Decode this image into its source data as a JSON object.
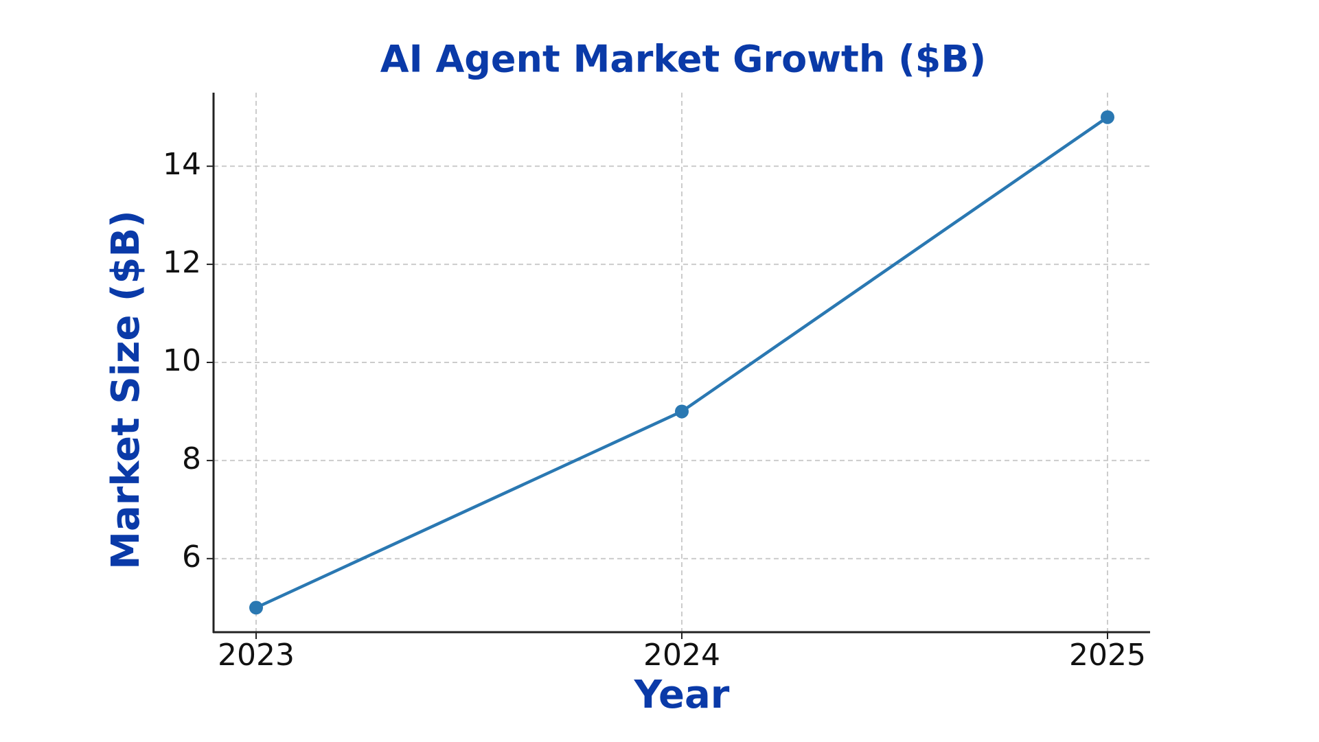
{
  "chart_data": {
    "type": "line",
    "title": "AI Agent Market Growth ($B)",
    "x_label": "Year",
    "y_label": "Market Size ($B)",
    "x": [
      2023,
      2024,
      2025
    ],
    "values": [
      5,
      9,
      15
    ],
    "color": "#2a78b2",
    "xlim": [
      2022.9,
      2025.1
    ],
    "xticks": [
      2023,
      2024,
      2025
    ],
    "ylim": [
      4.5,
      15.5
    ],
    "yticks": [
      6,
      8,
      10,
      12,
      14
    ],
    "grid": true
  }
}
